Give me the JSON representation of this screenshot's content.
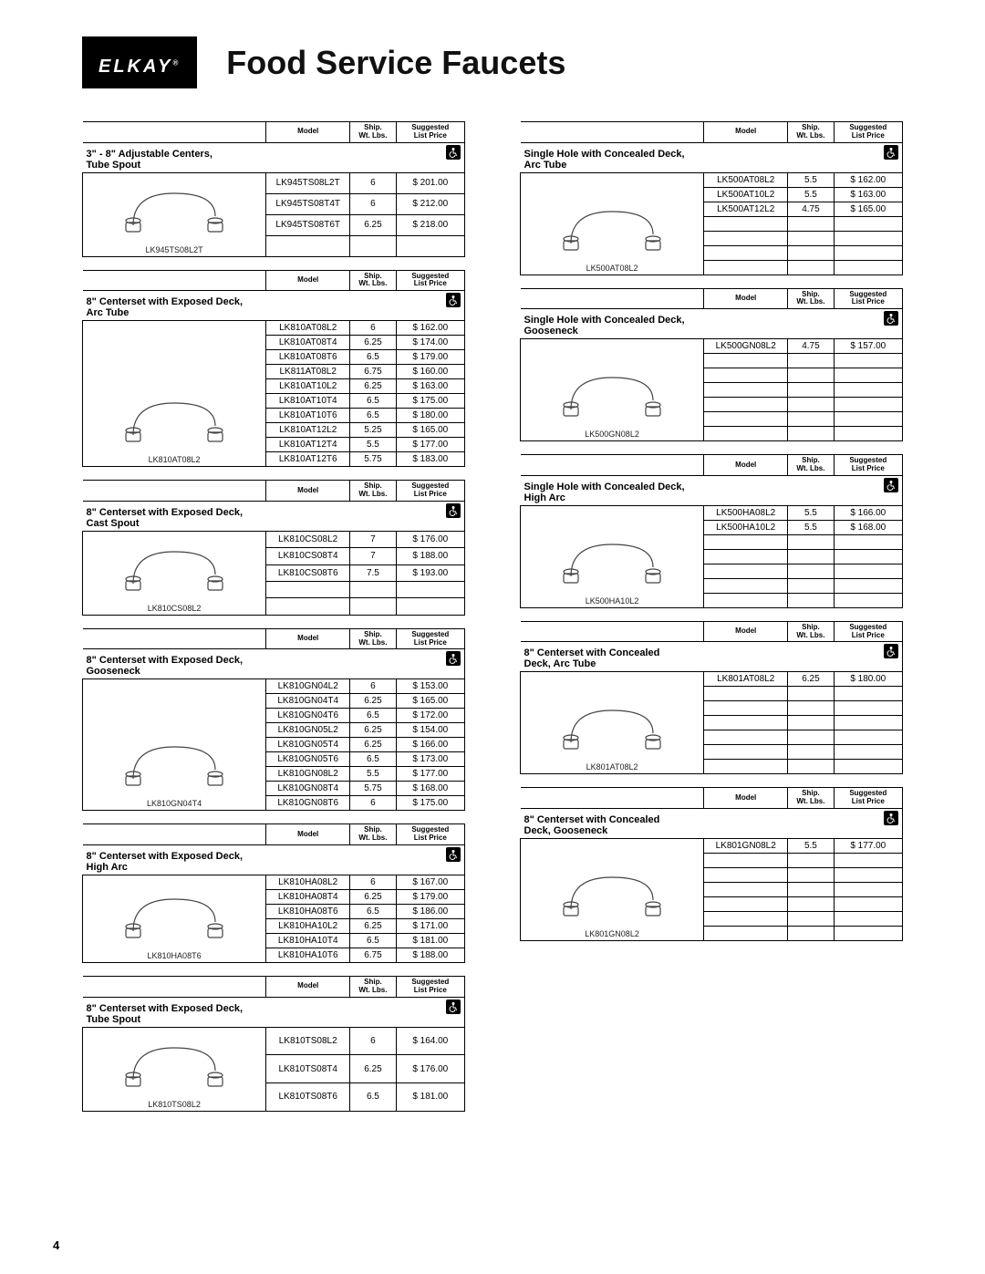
{
  "brand": "ELKAY",
  "reg": "®",
  "page_title": "Food Service Faucets",
  "page_number": "4",
  "col_headers": {
    "model": "Model",
    "ship_wt": "Ship.\nWt. Lbs.",
    "price": "Suggested\nList Price"
  },
  "sections_left": [
    {
      "title": "3\" - 8\" Adjustable Centers,\nTube Spout",
      "img_label": "LK945TS08L2T",
      "rows": [
        {
          "model": "LK945TS08L2T",
          "wt": "6",
          "price": "$ 201.00"
        },
        {
          "model": "LK945TS08T4T",
          "wt": "6",
          "price": "$ 212.00"
        },
        {
          "model": "LK945TS08T6T",
          "wt": "6.25",
          "price": "$ 218.00"
        }
      ],
      "trailing_blank": 1
    },
    {
      "title": "8\" Centerset with Exposed Deck,\nArc Tube",
      "img_label": "LK810AT08L2",
      "rows": [
        {
          "model": "LK810AT08L2",
          "wt": "6",
          "price": "$ 162.00"
        },
        {
          "model": "LK810AT08T4",
          "wt": "6.25",
          "price": "$ 174.00"
        },
        {
          "model": "LK810AT08T6",
          "wt": "6.5",
          "price": "$ 179.00"
        },
        {
          "model": "LK811AT08L2",
          "wt": "6.75",
          "price": "$ 160.00"
        },
        {
          "model": "LK810AT10L2",
          "wt": "6.25",
          "price": "$ 163.00"
        },
        {
          "model": "LK810AT10T4",
          "wt": "6.5",
          "price": "$ 175.00"
        },
        {
          "model": "LK810AT10T6",
          "wt": "6.5",
          "price": "$ 180.00"
        },
        {
          "model": "LK810AT12L2",
          "wt": "5.25",
          "price": "$ 165.00"
        },
        {
          "model": "LK810AT12T4",
          "wt": "5.5",
          "price": "$ 177.00"
        },
        {
          "model": "LK810AT12T6",
          "wt": "5.75",
          "price": "$ 183.00"
        }
      ]
    },
    {
      "title": "8\" Centerset with Exposed Deck,\nCast Spout",
      "img_label": "LK810CS08L2",
      "rows": [
        {
          "model": "LK810CS08L2",
          "wt": "7",
          "price": "$ 176.00"
        },
        {
          "model": "LK810CS08T4",
          "wt": "7",
          "price": "$ 188.00"
        },
        {
          "model": "LK810CS08T6",
          "wt": "7.5",
          "price": "$ 193.00"
        }
      ],
      "trailing_blank": 2
    },
    {
      "title": "8\" Centerset with Exposed Deck,\nGooseneck",
      "img_label": "LK810GN04T4",
      "rows": [
        {
          "model": "LK810GN04L2",
          "wt": "6",
          "price": "$ 153.00"
        },
        {
          "model": "LK810GN04T4",
          "wt": "6.25",
          "price": "$ 165.00"
        },
        {
          "model": "LK810GN04T6",
          "wt": "6.5",
          "price": "$ 172.00"
        },
        {
          "model": "LK810GN05L2",
          "wt": "6.25",
          "price": "$ 154.00"
        },
        {
          "model": "LK810GN05T4",
          "wt": "6.25",
          "price": "$ 166.00"
        },
        {
          "model": "LK810GN05T6",
          "wt": "6.5",
          "price": "$ 173.00"
        },
        {
          "model": "LK810GN08L2",
          "wt": "5.5",
          "price": "$ 177.00"
        },
        {
          "model": "LK810GN08T4",
          "wt": "5.75",
          "price": "$ 168.00"
        },
        {
          "model": "LK810GN08T6",
          "wt": "6",
          "price": "$ 175.00"
        }
      ]
    },
    {
      "title": "8\" Centerset with Exposed Deck,\nHigh Arc",
      "img_label": "LK810HA08T6",
      "rows": [
        {
          "model": "LK810HA08L2",
          "wt": "6",
          "price": "$ 167.00"
        },
        {
          "model": "LK810HA08T4",
          "wt": "6.25",
          "price": "$ 179.00"
        },
        {
          "model": "LK810HA08T6",
          "wt": "6.5",
          "price": "$ 186.00"
        },
        {
          "model": "LK810HA10L2",
          "wt": "6.25",
          "price": "$ 171.00"
        },
        {
          "model": "LK810HA10T4",
          "wt": "6.5",
          "price": "$ 181.00"
        },
        {
          "model": "LK810HA10T6",
          "wt": "6.75",
          "price": "$ 188.00"
        }
      ]
    },
    {
      "title": "8\" Centerset with Exposed Deck,\nTube Spout",
      "img_label": "LK810TS08L2",
      "rows": [
        {
          "model": "LK810TS08L2",
          "wt": "6",
          "price": "$ 164.00"
        },
        {
          "model": "LK810TS08T4",
          "wt": "6.25",
          "price": "$ 176.00"
        },
        {
          "model": "LK810TS08T6",
          "wt": "6.5",
          "price": "$ 181.00"
        }
      ]
    }
  ],
  "sections_right": [
    {
      "title": "Single Hole with Concealed Deck,\nArc Tube",
      "img_label": "LK500AT08L2",
      "rows": [
        {
          "model": "LK500AT08L2",
          "wt": "5.5",
          "price": "$ 162.00"
        },
        {
          "model": "LK500AT10L2",
          "wt": "5.5",
          "price": "$ 163.00"
        },
        {
          "model": "LK500AT12L2",
          "wt": "4.75",
          "price": "$ 165.00"
        }
      ],
      "trailing_blank": 4
    },
    {
      "title": "Single Hole with Concealed Deck,\nGooseneck",
      "img_label": "LK500GN08L2",
      "rows": [
        {
          "model": "LK500GN08L2",
          "wt": "4.75",
          "price": "$ 157.00"
        }
      ],
      "trailing_blank": 6
    },
    {
      "title": "Single Hole with Concealed Deck,\nHigh Arc",
      "img_label": "LK500HA10L2",
      "rows": [
        {
          "model": "LK500HA08L2",
          "wt": "5.5",
          "price": "$ 166.00"
        },
        {
          "model": "LK500HA10L2",
          "wt": "5.5",
          "price": "$ 168.00"
        }
      ],
      "trailing_blank": 5
    },
    {
      "title": "8\" Centerset with Concealed\nDeck, Arc Tube",
      "img_label": "LK801AT08L2",
      "rows": [
        {
          "model": "LK801AT08L2",
          "wt": "6.25",
          "price": "$ 180.00"
        }
      ],
      "trailing_blank": 6
    },
    {
      "title": "8\" Centerset with Concealed\nDeck, Gooseneck",
      "img_label": "LK801GN08L2",
      "rows": [
        {
          "model": "LK801GN08L2",
          "wt": "5.5",
          "price": "$ 177.00"
        }
      ],
      "trailing_blank": 6
    }
  ]
}
